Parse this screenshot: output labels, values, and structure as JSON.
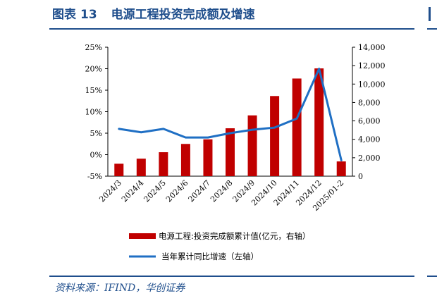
{
  "figure": {
    "label": "图表",
    "number": "13",
    "title": "电源工程投资完成额及增速"
  },
  "source": "资料来源：IFIND，华创证券",
  "colors": {
    "bar": "#c00000",
    "line": "#1f6fc4",
    "header": "#1f4e8c"
  },
  "chart_data": {
    "type": "bar",
    "categories": [
      "2024/3",
      "2024/4",
      "2024/5",
      "2024/6",
      "2024/7",
      "2024/8",
      "2024/9",
      "2024/10",
      "2024/11",
      "2024/12",
      "2025/01-2"
    ],
    "series": [
      {
        "name": "电源工程:投资完成额累计值(亿元，右轴）",
        "type": "bar",
        "axis": "right",
        "values": [
          1350,
          1900,
          2600,
          3500,
          4000,
          5200,
          6600,
          8700,
          10600,
          11700,
          1600
        ]
      },
      {
        "name": "当年累计同比增速（左轴）",
        "type": "line",
        "axis": "left",
        "values": [
          6.0,
          5.2,
          6.0,
          4.0,
          4.0,
          5.0,
          5.8,
          6.3,
          8.4,
          20.0,
          -1.3
        ]
      }
    ],
    "left_axis": {
      "ylim": [
        -5,
        25
      ],
      "ticks": [
        -5,
        0,
        5,
        10,
        15,
        20,
        25
      ],
      "tick_labels": [
        "-5%",
        "0%",
        "5%",
        "10%",
        "15%",
        "20%",
        "25%"
      ]
    },
    "right_axis": {
      "ylim": [
        0,
        14000
      ],
      "ticks": [
        0,
        2000,
        4000,
        6000,
        8000,
        10000,
        12000,
        14000
      ],
      "tick_labels": [
        "0",
        "2,000",
        "4,000",
        "6,000",
        "8,000",
        "10,000",
        "12,000",
        "14,000"
      ]
    },
    "grid": false,
    "legend_position": "bottom"
  }
}
